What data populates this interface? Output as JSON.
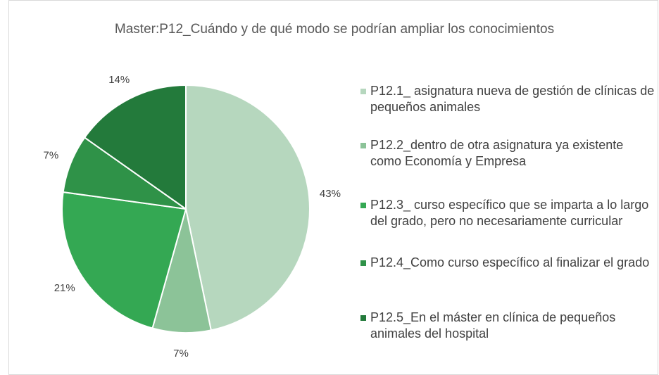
{
  "chart_data": {
    "type": "pie",
    "title": "Master:P12_Cuándo y de qué modo se podrían ampliar los conocimientos",
    "categories": [
      "P12.1_ asignatura nueva de gestión de clínicas de pequeños animales",
      "P12.2_dentro de otra asignatura ya existente como Economía y Empresa",
      "P12.3_ curso específico que se imparta a lo largo del grado, pero no necesariamente curricular",
      "P12.4_Como curso específico al finalizar el grado",
      "P12.5_En el máster en clínica de pequeños animales del hospital"
    ],
    "values": [
      43,
      7,
      21,
      7,
      14
    ],
    "value_labels": [
      "43%",
      "7%",
      "21%",
      "7%",
      "14%"
    ],
    "colors": [
      "#b6d7be",
      "#8cc398",
      "#34a853",
      "#2f9248",
      "#237a3b"
    ],
    "legend": "right"
  }
}
